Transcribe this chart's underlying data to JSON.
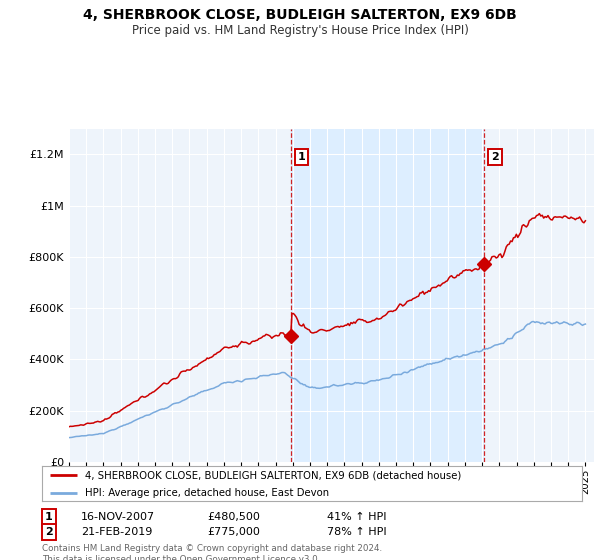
{
  "title": "4, SHERBROOK CLOSE, BUDLEIGH SALTERTON, EX9 6DB",
  "subtitle": "Price paid vs. HM Land Registry's House Price Index (HPI)",
  "legend_line1": "4, SHERBROOK CLOSE, BUDLEIGH SALTERTON, EX9 6DB (detached house)",
  "legend_line2": "HPI: Average price, detached house, East Devon",
  "transaction1_date": "16-NOV-2007",
  "transaction1_price": "£480,500",
  "transaction1_hpi": "41% ↑ HPI",
  "transaction2_date": "21-FEB-2019",
  "transaction2_price": "£775,000",
  "transaction2_hpi": "78% ↑ HPI",
  "footer": "Contains HM Land Registry data © Crown copyright and database right 2024.\nThis data is licensed under the Open Government Licence v3.0.",
  "red_color": "#cc0000",
  "blue_color": "#7aaadd",
  "shade_color": "#ddeeff",
  "plot_bg_color": "#eef4fb",
  "ylim_max": 1300000,
  "transaction1_year": 2007.88,
  "transaction2_year": 2019.12,
  "transaction1_value": 480500,
  "transaction2_value": 775000
}
